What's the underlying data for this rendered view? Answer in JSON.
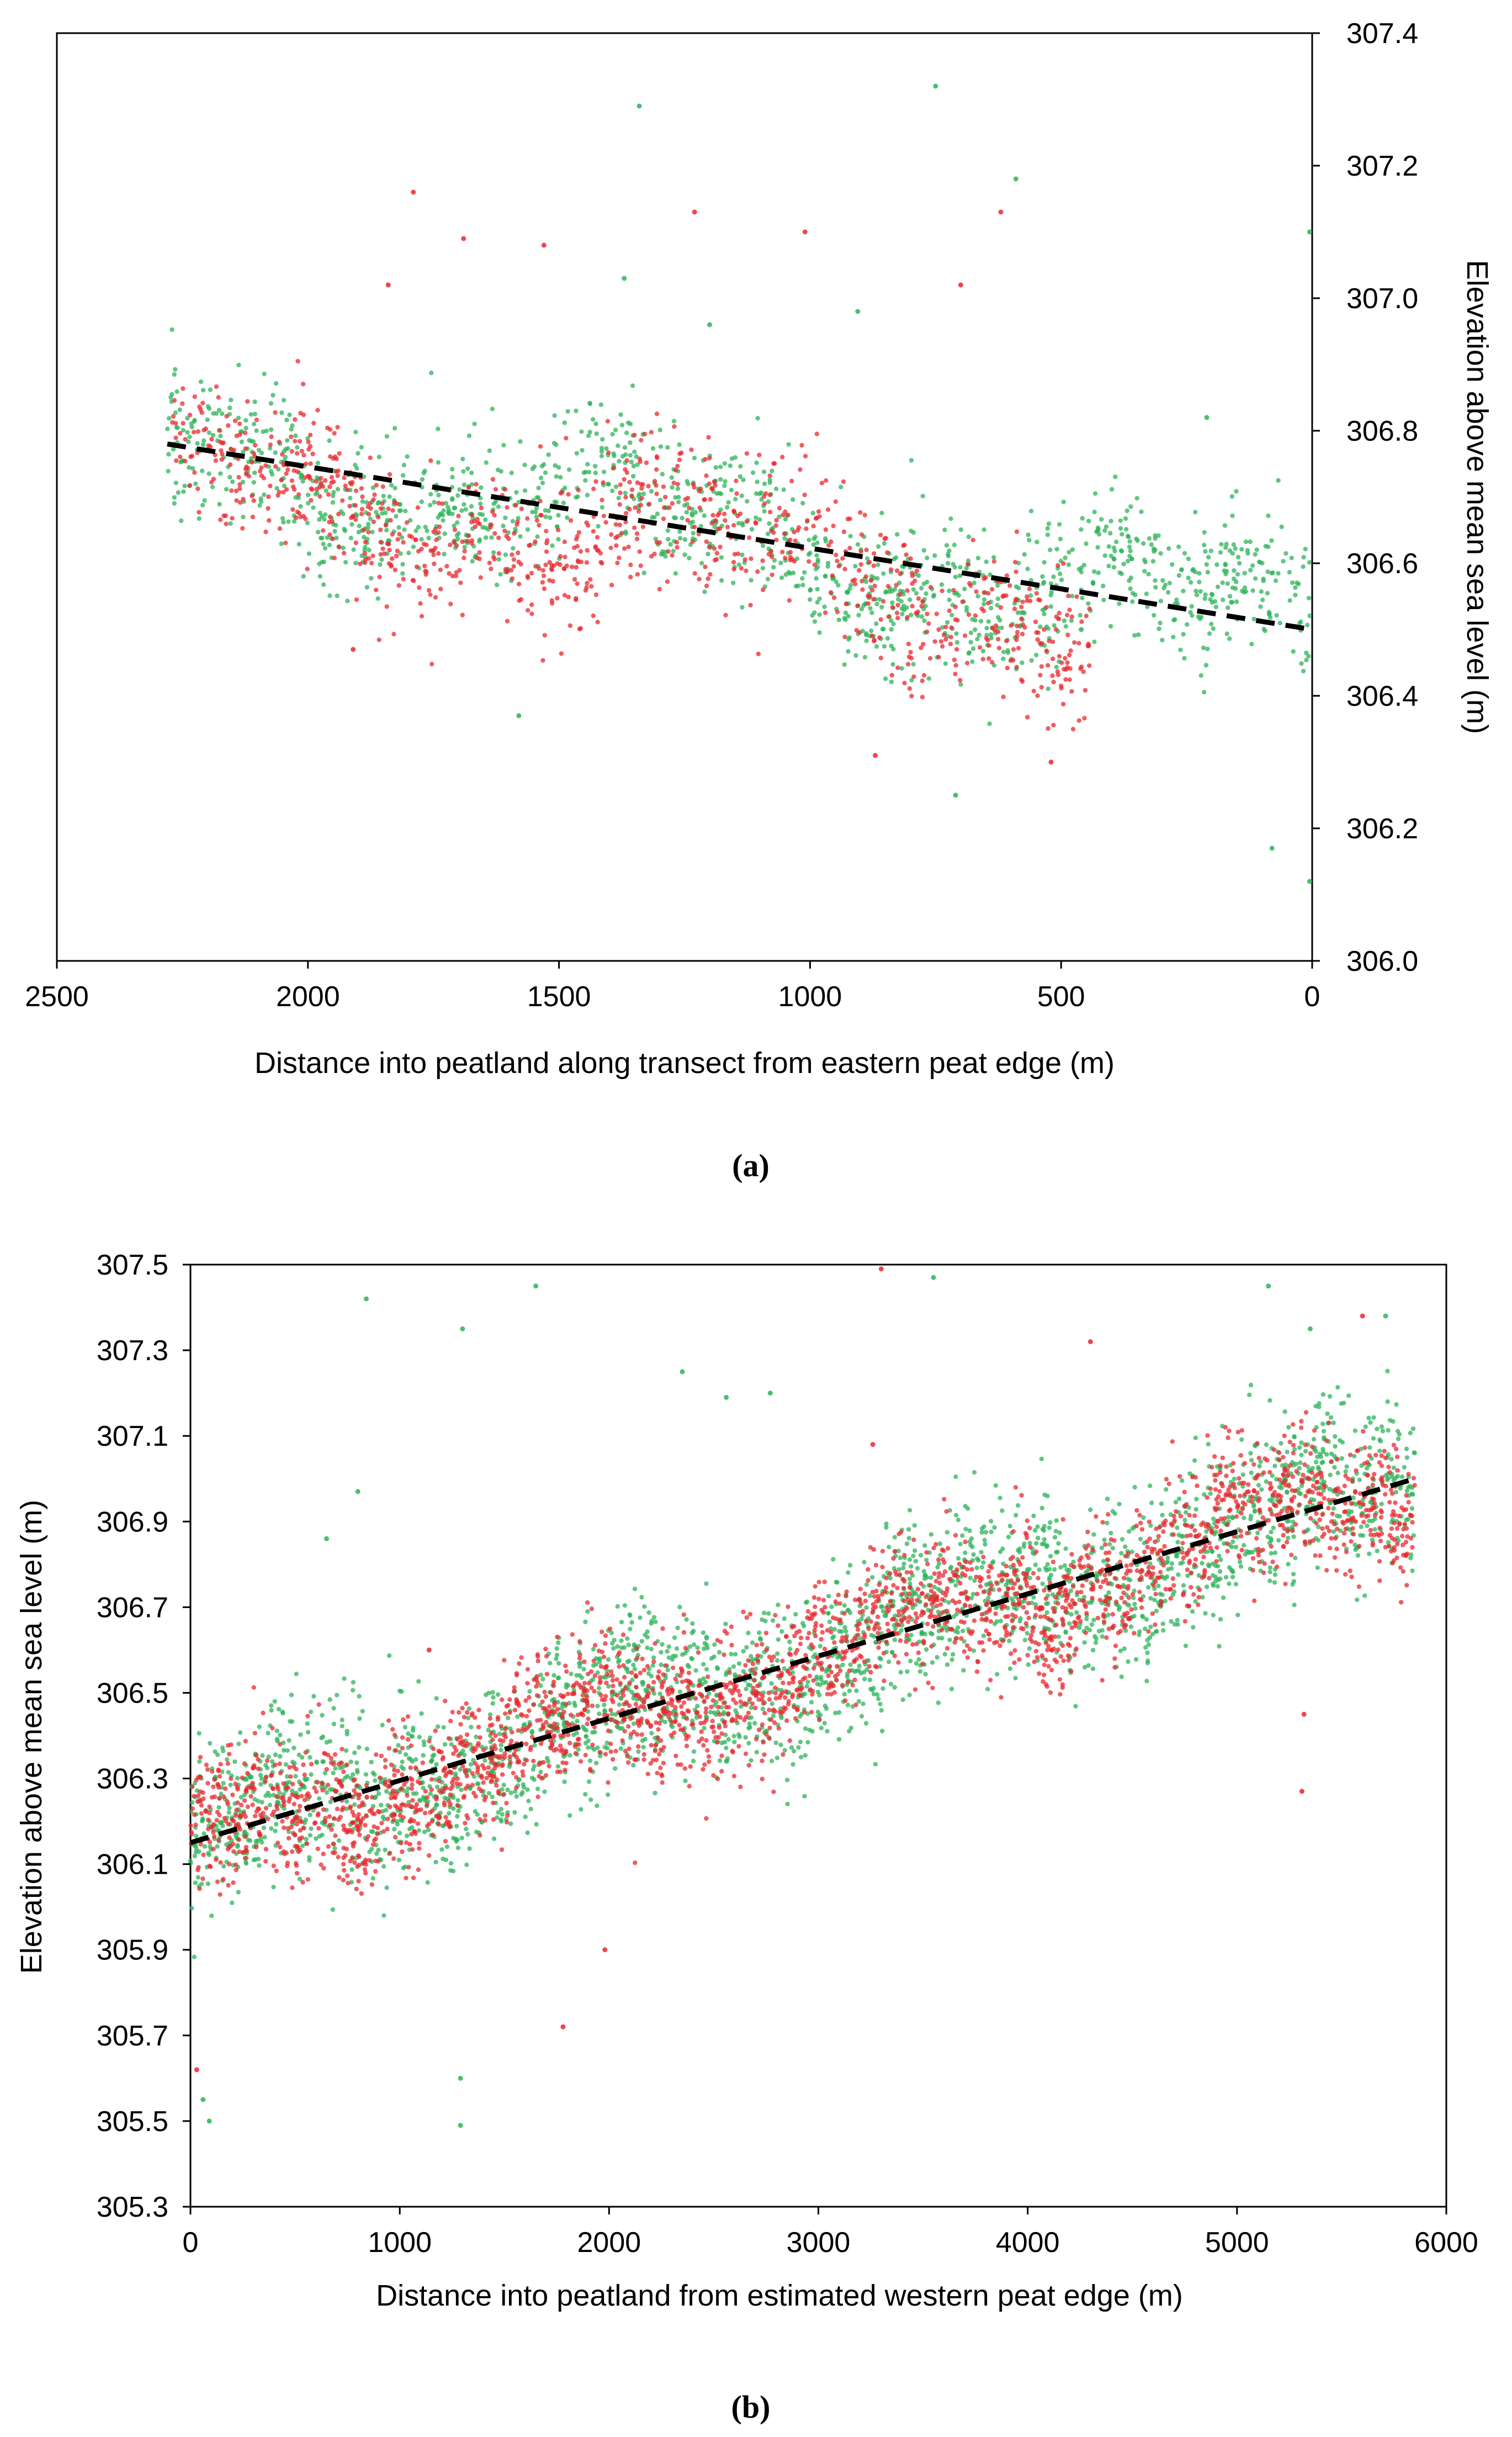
{
  "chart_data": [
    {
      "type": "scatter",
      "caption": "(a)",
      "xlabel": "Distance into peatland along transect from eastern peat edge (m)",
      "ylabel": "Elevation above mean sea level (m)",
      "xlim": [
        2500,
        0
      ],
      "ylim": [
        306.0,
        307.4
      ],
      "x_ticks": [
        2500,
        2000,
        1500,
        1000,
        500,
        0
      ],
      "y_ticks": [
        306.0,
        306.2,
        306.4,
        306.6,
        306.8,
        307.0,
        307.2,
        307.4
      ],
      "x_tick_labels": [
        "2500",
        "2000",
        "1500",
        "1000",
        "500",
        "0"
      ],
      "y_tick_labels": [
        "306.0",
        "306.2",
        "306.4",
        "306.6",
        "306.8",
        "307.0",
        "307.2",
        "307.4"
      ],
      "y_axis_side": "right",
      "series": [
        {
          "name": "green points",
          "color": "#2db35a",
          "x_range": [
            0,
            2280
          ],
          "trend": {
            "x0": 2280,
            "y0": 306.78,
            "x1": 0,
            "y1": 306.5
          },
          "spread": 0.09,
          "count": 1400,
          "outliers": [
            [
              750,
              307.32
            ],
            [
              1340,
              307.29
            ],
            [
              590,
              307.18
            ],
            [
              5,
              307.1
            ],
            [
              1370,
              307.03
            ],
            [
              905,
              306.98
            ],
            [
              1200,
              306.96
            ],
            [
              210,
              306.82
            ],
            [
              1580,
              306.37
            ],
            [
              710,
              306.25
            ],
            [
              80,
              306.17
            ],
            [
              5,
              306.12
            ],
            [
              460,
              306.5
            ]
          ]
        },
        {
          "name": "red points",
          "color": "#e8282d",
          "x_range": [
            440,
            2270
          ],
          "trend": {
            "x0": 2270,
            "y0": 306.74,
            "x1": 440,
            "y1": 306.53
          },
          "spread": 0.09,
          "count": 1000,
          "outliers": [
            [
              1790,
              307.16
            ],
            [
              1230,
              307.13
            ],
            [
              620,
              307.13
            ],
            [
              1010,
              307.1
            ],
            [
              1690,
              307.09
            ],
            [
              1530,
              307.08
            ],
            [
              700,
              307.02
            ],
            [
              1840,
              307.02
            ],
            [
              870,
              306.31
            ],
            [
              1910,
              306.47
            ],
            [
              520,
              306.3
            ]
          ]
        }
      ],
      "trendline": {
        "style": "dashed",
        "color": "#000000",
        "x0": 2280,
        "y0": 306.78,
        "x1": 0,
        "y1": 306.5
      }
    },
    {
      "type": "scatter",
      "caption": "(b)",
      "xlabel": "Distance into peatland from estimated western peat edge (m)",
      "ylabel": "Elevation above mean sea level (m)",
      "xlim": [
        0,
        6000
      ],
      "ylim": [
        305.3,
        307.5
      ],
      "x_ticks": [
        0,
        1000,
        2000,
        3000,
        4000,
        5000,
        6000
      ],
      "y_ticks": [
        305.3,
        305.5,
        305.7,
        305.9,
        306.1,
        306.3,
        306.5,
        306.7,
        306.9,
        307.1,
        307.3,
        307.5
      ],
      "x_tick_labels": [
        "0",
        "1000",
        "2000",
        "3000",
        "4000",
        "5000",
        "6000"
      ],
      "y_tick_labels": [
        "305.3",
        "305.5",
        "305.7",
        "305.9",
        "306.1",
        "306.3",
        "306.5",
        "306.7",
        "306.9",
        "307.1",
        "307.3",
        "307.5"
      ],
      "y_axis_side": "left",
      "series": [
        {
          "name": "green points",
          "color": "#2db35a",
          "x_range": [
            0,
            5850
          ],
          "trend": {
            "x0": 0,
            "y0": 306.15,
            "x1": 5850,
            "y1": 307.0
          },
          "spread": 0.16,
          "count": 2600,
          "outliers": [
            [
              840,
              307.42
            ],
            [
              1650,
              307.45
            ],
            [
              1300,
              307.35
            ],
            [
              3550,
              307.47
            ],
            [
              5150,
              307.45
            ],
            [
              2560,
              307.19
            ],
            [
              2350,
              307.25
            ],
            [
              2770,
              307.2
            ],
            [
              5350,
              307.35
            ],
            [
              5710,
              307.38
            ],
            [
              1290,
              305.6
            ],
            [
              1290,
              305.49
            ],
            [
              90,
              305.5
            ],
            [
              60,
              305.55
            ],
            [
              800,
              306.97
            ],
            [
              650,
              306.86
            ]
          ]
        },
        {
          "name": "red points",
          "color": "#e8282d",
          "x_range": [
            0,
            5850
          ],
          "trend": {
            "x0": 0,
            "y0": 306.15,
            "x1": 5850,
            "y1": 307.0
          },
          "spread": 0.13,
          "count": 2600,
          "outliers": [
            [
              3300,
              307.49
            ],
            [
              3260,
              307.08
            ],
            [
              4300,
              307.32
            ],
            [
              5600,
              307.38
            ],
            [
              1780,
              305.72
            ],
            [
              30,
              305.62
            ],
            [
              1980,
              305.9
            ],
            [
              5320,
              306.45
            ],
            [
              5310,
              306.27
            ],
            [
              1140,
              306.6
            ]
          ]
        }
      ],
      "trendline": {
        "style": "dashed",
        "color": "#000000",
        "x0": 0,
        "y0": 306.15,
        "x1": 5850,
        "y1": 307.0
      }
    }
  ]
}
